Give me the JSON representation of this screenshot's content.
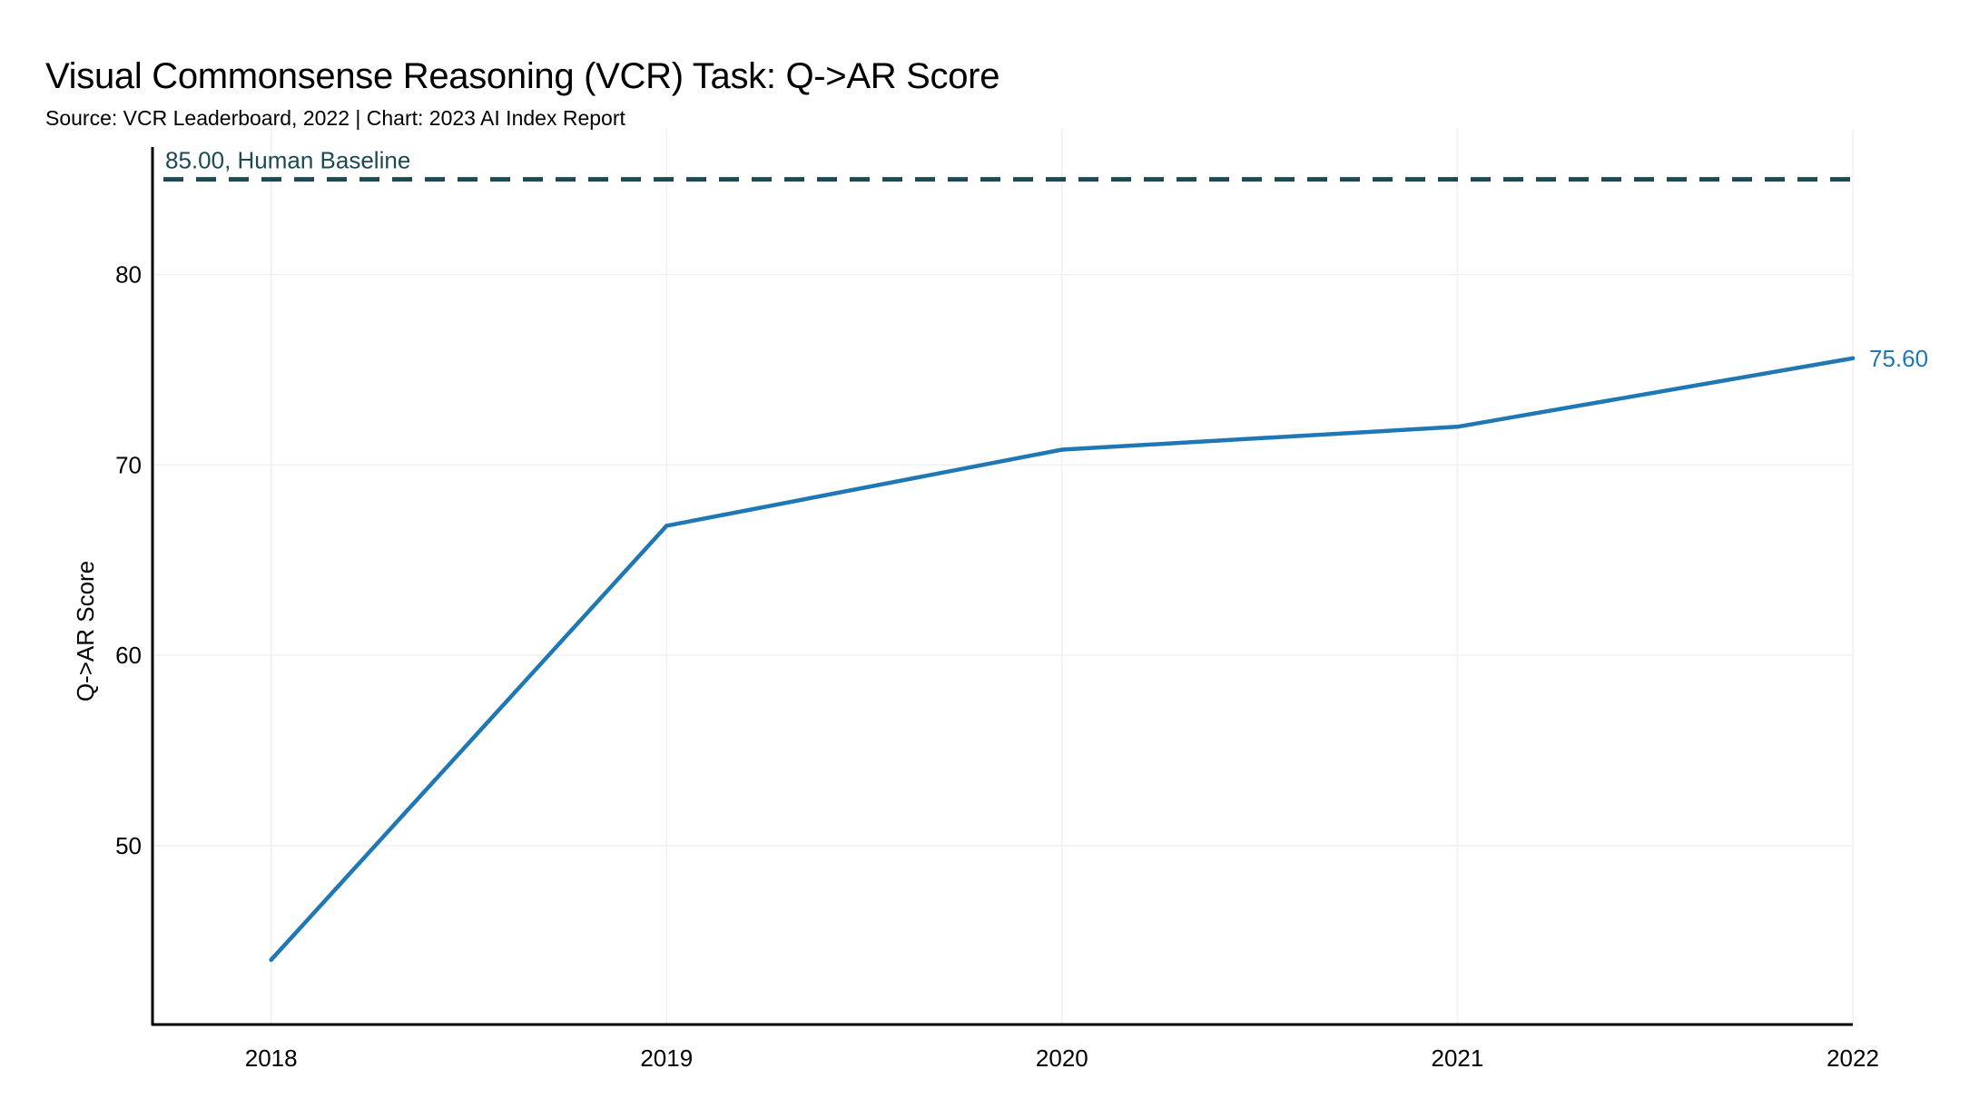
{
  "header": {
    "title": "Visual Commonsense Reasoning (VCR) Task: Q->AR Score",
    "subtitle": "Source: VCR Leaderboard, 2022 | Chart: 2023 AI Index Report"
  },
  "colors": {
    "series": "#1f77b4",
    "baseline": "#1b4a52",
    "grid": "#f0f0f0",
    "axis": "#000000"
  },
  "chart_data": {
    "type": "line",
    "title": "Visual Commonsense Reasoning (VCR) Task: Q->AR Score",
    "subtitle": "Source: VCR Leaderboard, 2022 | Chart: 2023 AI Index Report",
    "xlabel": "",
    "ylabel": "Q->AR Score",
    "x": [
      2018,
      2019,
      2020,
      2021,
      2022
    ],
    "x_tick_labels": [
      "2018",
      "2019",
      "2020",
      "2021",
      "2022"
    ],
    "series": [
      {
        "values": [
          44.0,
          66.8,
          70.8,
          72.0,
          75.6
        ],
        "end_label": "75.60"
      }
    ],
    "y_ticks": [
      50,
      60,
      70,
      80
    ],
    "y_tick_labels": [
      "50",
      "60",
      "70",
      "80"
    ],
    "xlim": [
      2017.7,
      2022
    ],
    "ylim": [
      40.6,
      86.7
    ],
    "grid": true,
    "reference_line": {
      "value": 85.0,
      "label": "85.00, Human Baseline",
      "style": "dashed"
    }
  }
}
